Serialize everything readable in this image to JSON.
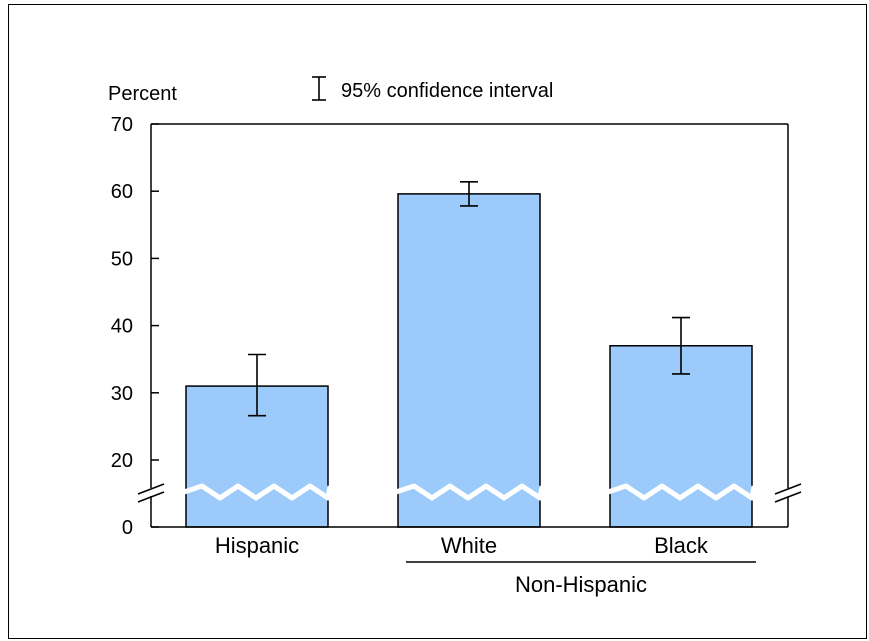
{
  "chart_data": {
    "type": "bar",
    "ylabel": "Percent",
    "legend": {
      "label": "95% confidence interval"
    },
    "categories": [
      "Hispanic",
      "White",
      "Black"
    ],
    "group_label": "Non-Hispanic",
    "values": [
      31,
      59.6,
      37
    ],
    "ci_lower": [
      26.6,
      57.8,
      32.8
    ],
    "ci_upper": [
      35.7,
      61.4,
      41.2
    ],
    "yticks": [
      0,
      20,
      30,
      40,
      50,
      60,
      70
    ],
    "ylim": [
      0,
      70
    ],
    "axis_break": true,
    "bar_color": "#9CCBFB",
    "break_line_color": "#ffffff"
  }
}
